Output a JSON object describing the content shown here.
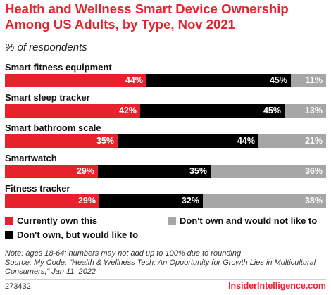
{
  "header": {
    "title": "Health and Wellness Smart Device Ownership Among US Adults, by Type, Nov 2021",
    "subtitle": "% of respondents"
  },
  "colors": {
    "currently_own": "#e8222c",
    "would_like": "#000000",
    "would_not_like": "#a6a6a6"
  },
  "chart_data": {
    "type": "bar",
    "orientation": "horizontal",
    "stacked": true,
    "categories": [
      "Smart fitness equipment",
      "Smart sleep tracker",
      "Smart bathroom scale",
      "Smartwatch",
      "Fitness tracker"
    ],
    "series": [
      {
        "name": "Currently own this",
        "values": [
          44,
          42,
          35,
          29,
          29
        ],
        "color": "#e8222c"
      },
      {
        "name": "Don't own, but would like to",
        "values": [
          45,
          45,
          44,
          35,
          32
        ],
        "color": "#000000"
      },
      {
        "name": "Don't own and would not like to",
        "values": [
          11,
          13,
          21,
          36,
          38
        ],
        "color": "#a6a6a6"
      }
    ],
    "value_suffix": "%",
    "xlim": [
      0,
      100
    ],
    "grid": false,
    "legend_position": "bottom"
  },
  "legend": [
    {
      "label": "Currently own this",
      "color": "#e8222c"
    },
    {
      "label": "Don't own and would not like to",
      "color": "#a6a6a6"
    },
    {
      "label": "Don't own, but would like to",
      "color": "#000000"
    }
  ],
  "footnote": {
    "note": "Note: ages 18-64; numbers may not add up to 100% due to rounding",
    "source": "Source: My Code, \"Health & Wellness Tech: An Opportunity for Growth Lies in Multicultural Consumers,\" Jan 11, 2022"
  },
  "footer": {
    "chart_id": "273432",
    "brand": "InsiderIntelligence.com"
  }
}
